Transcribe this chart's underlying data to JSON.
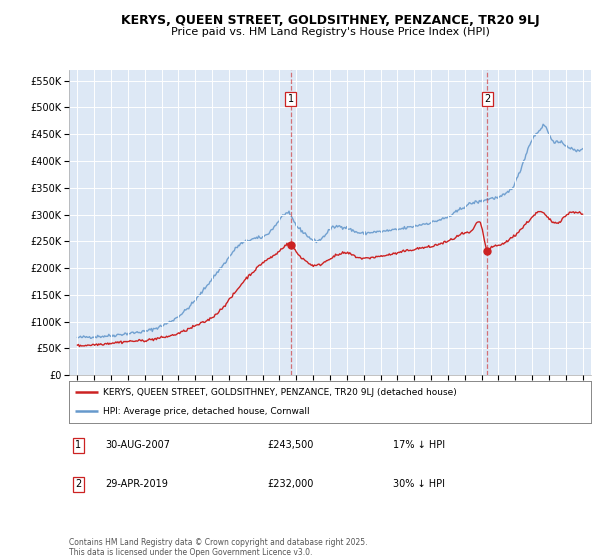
{
  "title": "KERYS, QUEEN STREET, GOLDSITHNEY, PENZANCE, TR20 9LJ",
  "subtitle": "Price paid vs. HM Land Registry's House Price Index (HPI)",
  "legend_line1": "KERYS, QUEEN STREET, GOLDSITHNEY, PENZANCE, TR20 9LJ (detached house)",
  "legend_line2": "HPI: Average price, detached house, Cornwall",
  "annotation1_label": "1",
  "annotation1_date": "30-AUG-2007",
  "annotation1_price": "£243,500",
  "annotation1_hpi": "17% ↓ HPI",
  "annotation2_label": "2",
  "annotation2_date": "29-APR-2019",
  "annotation2_price": "£232,000",
  "annotation2_hpi": "30% ↓ HPI",
  "footnote": "Contains HM Land Registry data © Crown copyright and database right 2025.\nThis data is licensed under the Open Government Licence v3.0.",
  "fig_bg_color": "#ffffff",
  "plot_bg_color": "#dde8f5",
  "red_line_color": "#cc2222",
  "blue_line_color": "#6699cc",
  "marker1_x_year": 2007.67,
  "marker1_y": 243500,
  "marker2_x_year": 2019.33,
  "marker2_y": 232000,
  "ylim": [
    0,
    570000
  ],
  "yticks": [
    0,
    50000,
    100000,
    150000,
    200000,
    250000,
    300000,
    350000,
    400000,
    450000,
    500000,
    550000
  ],
  "xlim_start": 1994.5,
  "xlim_end": 2025.5,
  "hpi_anchors": [
    [
      1995.0,
      70000
    ],
    [
      1996.0,
      72000
    ],
    [
      1997.0,
      74000
    ],
    [
      1998.0,
      78000
    ],
    [
      1999.0,
      82000
    ],
    [
      2000.0,
      92000
    ],
    [
      2001.0,
      110000
    ],
    [
      2002.0,
      140000
    ],
    [
      2003.0,
      180000
    ],
    [
      2004.0,
      220000
    ],
    [
      2004.5,
      240000
    ],
    [
      2005.0,
      250000
    ],
    [
      2005.5,
      255000
    ],
    [
      2006.0,
      258000
    ],
    [
      2007.0,
      290000
    ],
    [
      2007.5,
      302000
    ],
    [
      2008.0,
      280000
    ],
    [
      2008.5,
      265000
    ],
    [
      2009.0,
      252000
    ],
    [
      2009.5,
      255000
    ],
    [
      2010.0,
      272000
    ],
    [
      2010.5,
      278000
    ],
    [
      2011.0,
      275000
    ],
    [
      2011.5,
      268000
    ],
    [
      2012.0,
      265000
    ],
    [
      2012.5,
      267000
    ],
    [
      2013.0,
      268000
    ],
    [
      2013.5,
      270000
    ],
    [
      2014.0,
      272000
    ],
    [
      2014.5,
      275000
    ],
    [
      2015.0,
      278000
    ],
    [
      2015.5,
      282000
    ],
    [
      2016.0,
      285000
    ],
    [
      2016.5,
      290000
    ],
    [
      2017.0,
      295000
    ],
    [
      2017.5,
      305000
    ],
    [
      2018.0,
      315000
    ],
    [
      2018.5,
      322000
    ],
    [
      2019.0,
      325000
    ],
    [
      2019.5,
      330000
    ],
    [
      2020.0,
      332000
    ],
    [
      2020.5,
      340000
    ],
    [
      2021.0,
      360000
    ],
    [
      2021.5,
      400000
    ],
    [
      2022.0,
      440000
    ],
    [
      2022.5,
      460000
    ],
    [
      2022.8,
      465000
    ],
    [
      2023.0,
      450000
    ],
    [
      2023.5,
      435000
    ],
    [
      2024.0,
      430000
    ],
    [
      2024.5,
      420000
    ],
    [
      2025.0,
      425000
    ]
  ],
  "red_anchors": [
    [
      1995.0,
      55000
    ],
    [
      1996.0,
      57000
    ],
    [
      1997.0,
      60000
    ],
    [
      1998.0,
      63000
    ],
    [
      1999.0,
      65000
    ],
    [
      2000.0,
      70000
    ],
    [
      2001.0,
      78000
    ],
    [
      2002.0,
      92000
    ],
    [
      2003.0,
      108000
    ],
    [
      2004.0,
      140000
    ],
    [
      2004.5,
      160000
    ],
    [
      2005.0,
      180000
    ],
    [
      2005.5,
      195000
    ],
    [
      2006.0,
      210000
    ],
    [
      2006.5,
      220000
    ],
    [
      2007.0,
      232000
    ],
    [
      2007.67,
      243500
    ],
    [
      2008.0,
      230000
    ],
    [
      2008.5,
      215000
    ],
    [
      2009.0,
      205000
    ],
    [
      2009.5,
      208000
    ],
    [
      2010.0,
      218000
    ],
    [
      2010.5,
      225000
    ],
    [
      2011.0,
      228000
    ],
    [
      2011.5,
      222000
    ],
    [
      2012.0,
      218000
    ],
    [
      2012.5,
      220000
    ],
    [
      2013.0,
      222000
    ],
    [
      2013.5,
      225000
    ],
    [
      2014.0,
      228000
    ],
    [
      2014.5,
      232000
    ],
    [
      2015.0,
      235000
    ],
    [
      2015.5,
      238000
    ],
    [
      2016.0,
      240000
    ],
    [
      2016.5,
      245000
    ],
    [
      2017.0,
      250000
    ],
    [
      2017.5,
      258000
    ],
    [
      2018.0,
      265000
    ],
    [
      2018.5,
      272000
    ],
    [
      2019.0,
      278000
    ],
    [
      2019.33,
      232000
    ],
    [
      2019.5,
      235000
    ],
    [
      2020.0,
      242000
    ],
    [
      2020.5,
      250000
    ],
    [
      2021.0,
      262000
    ],
    [
      2021.5,
      278000
    ],
    [
      2022.0,
      295000
    ],
    [
      2022.5,
      305000
    ],
    [
      2023.0,
      292000
    ],
    [
      2023.5,
      285000
    ],
    [
      2024.0,
      298000
    ],
    [
      2024.5,
      305000
    ],
    [
      2025.0,
      300000
    ]
  ]
}
